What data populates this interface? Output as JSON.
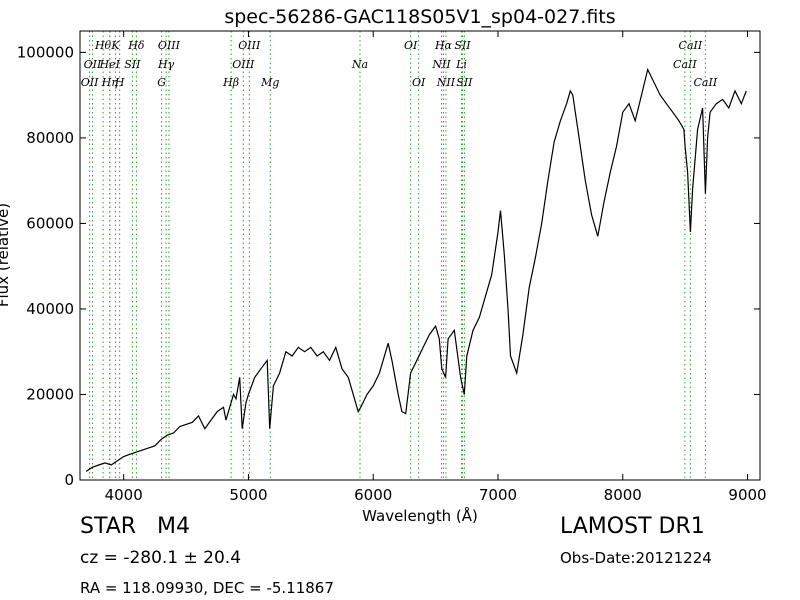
{
  "chart_data": {
    "type": "line",
    "title": "spec-56286-GAC118S05V1_sp04-027.fits",
    "xlabel": "Wavelength (Å)",
    "ylabel": "Flux (relative)",
    "xlim": [
      3650,
      9100
    ],
    "ylim": [
      0,
      105000
    ],
    "x_ticks": [
      4000,
      5000,
      6000,
      7000,
      8000,
      9000
    ],
    "y_ticks": [
      0,
      20000,
      40000,
      60000,
      80000,
      100000
    ],
    "x_tick_labels": [
      "4000",
      "5000",
      "6000",
      "7000",
      "8000",
      "9000"
    ],
    "y_tick_labels": [
      "0",
      "20000",
      "40000",
      "60000",
      "80000",
      "100000"
    ],
    "grid": false,
    "line_color": "#000000",
    "marker_color": "#2ca02c",
    "series": [
      {
        "x": [
          3700,
          3750,
          3800,
          3850,
          3900,
          3950,
          4000,
          4050,
          4100,
          4150,
          4200,
          4250,
          4300,
          4350,
          4400,
          4450,
          4500,
          4550,
          4600,
          4650,
          4700,
          4750,
          4800,
          4820,
          4850,
          4880,
          4900,
          4930,
          4950,
          4980,
          5000,
          5050,
          5100,
          5150,
          5170,
          5200,
          5250,
          5300,
          5350,
          5400,
          5450,
          5500,
          5550,
          5600,
          5650,
          5700,
          5750,
          5800,
          5850,
          5880,
          5900,
          5950,
          6000,
          6050,
          6100,
          6120,
          6150,
          6200,
          6230,
          6260,
          6300,
          6350,
          6400,
          6450,
          6500,
          6530,
          6550,
          6580,
          6600,
          6650,
          6700,
          6730,
          6750,
          6800,
          6850,
          6900,
          6950,
          7000,
          7020,
          7050,
          7080,
          7100,
          7150,
          7200,
          7250,
          7300,
          7350,
          7400,
          7450,
          7500,
          7550,
          7580,
          7600,
          7620,
          7650,
          7700,
          7750,
          7800,
          7850,
          7900,
          7950,
          8000,
          8050,
          8100,
          8150,
          8200,
          8250,
          8300,
          8350,
          8400,
          8450,
          8490,
          8500,
          8520,
          8542,
          8560,
          8600,
          8640,
          8662,
          8680,
          8700,
          8750,
          8800,
          8850,
          8900,
          8950,
          8990
        ],
        "y": [
          2000,
          3000,
          3500,
          4000,
          3500,
          4500,
          5500,
          6000,
          6500,
          7000,
          7500,
          8000,
          9500,
          10500,
          11000,
          12500,
          13000,
          13500,
          15000,
          12000,
          14000,
          16000,
          17000,
          14000,
          17000,
          20000,
          19000,
          24000,
          12000,
          18000,
          20000,
          24000,
          26000,
          28000,
          12000,
          22000,
          25000,
          30000,
          29000,
          31000,
          30000,
          31000,
          29000,
          30000,
          28000,
          31000,
          26000,
          24000,
          19000,
          16000,
          17000,
          20000,
          22000,
          25000,
          30000,
          32000,
          28000,
          20000,
          16000,
          15500,
          25000,
          28000,
          31000,
          34000,
          36000,
          33000,
          26000,
          24000,
          33000,
          35000,
          24000,
          20000,
          29000,
          35000,
          38000,
          43000,
          48000,
          58000,
          63000,
          53000,
          40000,
          29000,
          25000,
          34000,
          45000,
          52000,
          60000,
          70000,
          79000,
          84000,
          88000,
          91000,
          90000,
          86000,
          80000,
          70000,
          62000,
          57000,
          65000,
          72000,
          78000,
          86000,
          88000,
          84000,
          90000,
          96000,
          93000,
          90000,
          88000,
          86000,
          84000,
          82000,
          78000,
          72000,
          58000,
          68000,
          82000,
          87000,
          67000,
          80000,
          86000,
          88000,
          89000,
          87000,
          91000,
          88000,
          91000
        ]
      }
    ],
    "lines": [
      {
        "x": 3727,
        "label": "OII",
        "row": 2
      },
      {
        "x": 3750,
        "label": "OII",
        "row": 1
      },
      {
        "x": 3835,
        "label": "Hθ",
        "row": 0
      },
      {
        "x": 3889,
        "label": "Hη",
        "row": 2
      },
      {
        "x": 3888,
        "label": "HeI",
        "row": 1
      },
      {
        "x": 3934,
        "label": "K",
        "row": 0
      },
      {
        "x": 3968,
        "label": "H",
        "row": 2
      },
      {
        "x": 4070,
        "label": "SII",
        "row": 1
      },
      {
        "x": 4102,
        "label": "Hδ",
        "row": 0
      },
      {
        "x": 4304,
        "label": "G",
        "row": 2
      },
      {
        "x": 4340,
        "label": "Hγ",
        "row": 1
      },
      {
        "x": 4363,
        "label": "OIII",
        "row": 0
      },
      {
        "x": 4861,
        "label": "Hβ",
        "row": 2
      },
      {
        "x": 4959,
        "label": "OIII",
        "row": 1
      },
      {
        "x": 5007,
        "label": "OIII",
        "row": 0
      },
      {
        "x": 5175,
        "label": "Mg",
        "row": 2
      },
      {
        "x": 5894,
        "label": "Na",
        "row": 1
      },
      {
        "x": 6300,
        "label": "OI",
        "row": 0
      },
      {
        "x": 6364,
        "label": "OI",
        "row": 2
      },
      {
        "x": 6548,
        "label": "NII",
        "row": 1
      },
      {
        "x": 6563,
        "label": "Hα",
        "row": 0
      },
      {
        "x": 6583,
        "label": "NII",
        "row": 2
      },
      {
        "x": 6716,
        "label": "SII",
        "row": 0
      },
      {
        "x": 6708,
        "label": "Li",
        "row": 1
      },
      {
        "x": 6731,
        "label": "SII",
        "row": 2
      },
      {
        "x": 8498,
        "label": "CaII",
        "row": 1
      },
      {
        "x": 8542,
        "label": "CaII",
        "row": 0
      },
      {
        "x": 8662,
        "label": "CaII",
        "row": 2
      }
    ]
  },
  "info": {
    "class_label": "STAR",
    "subclass": "M4",
    "survey": "LAMOST DR1",
    "redshift": "cz = -280.1  ± 20.4",
    "obs_date": "Obs-Date:20121224",
    "coords": "RA = 118.09930, DEC = -5.11867"
  }
}
